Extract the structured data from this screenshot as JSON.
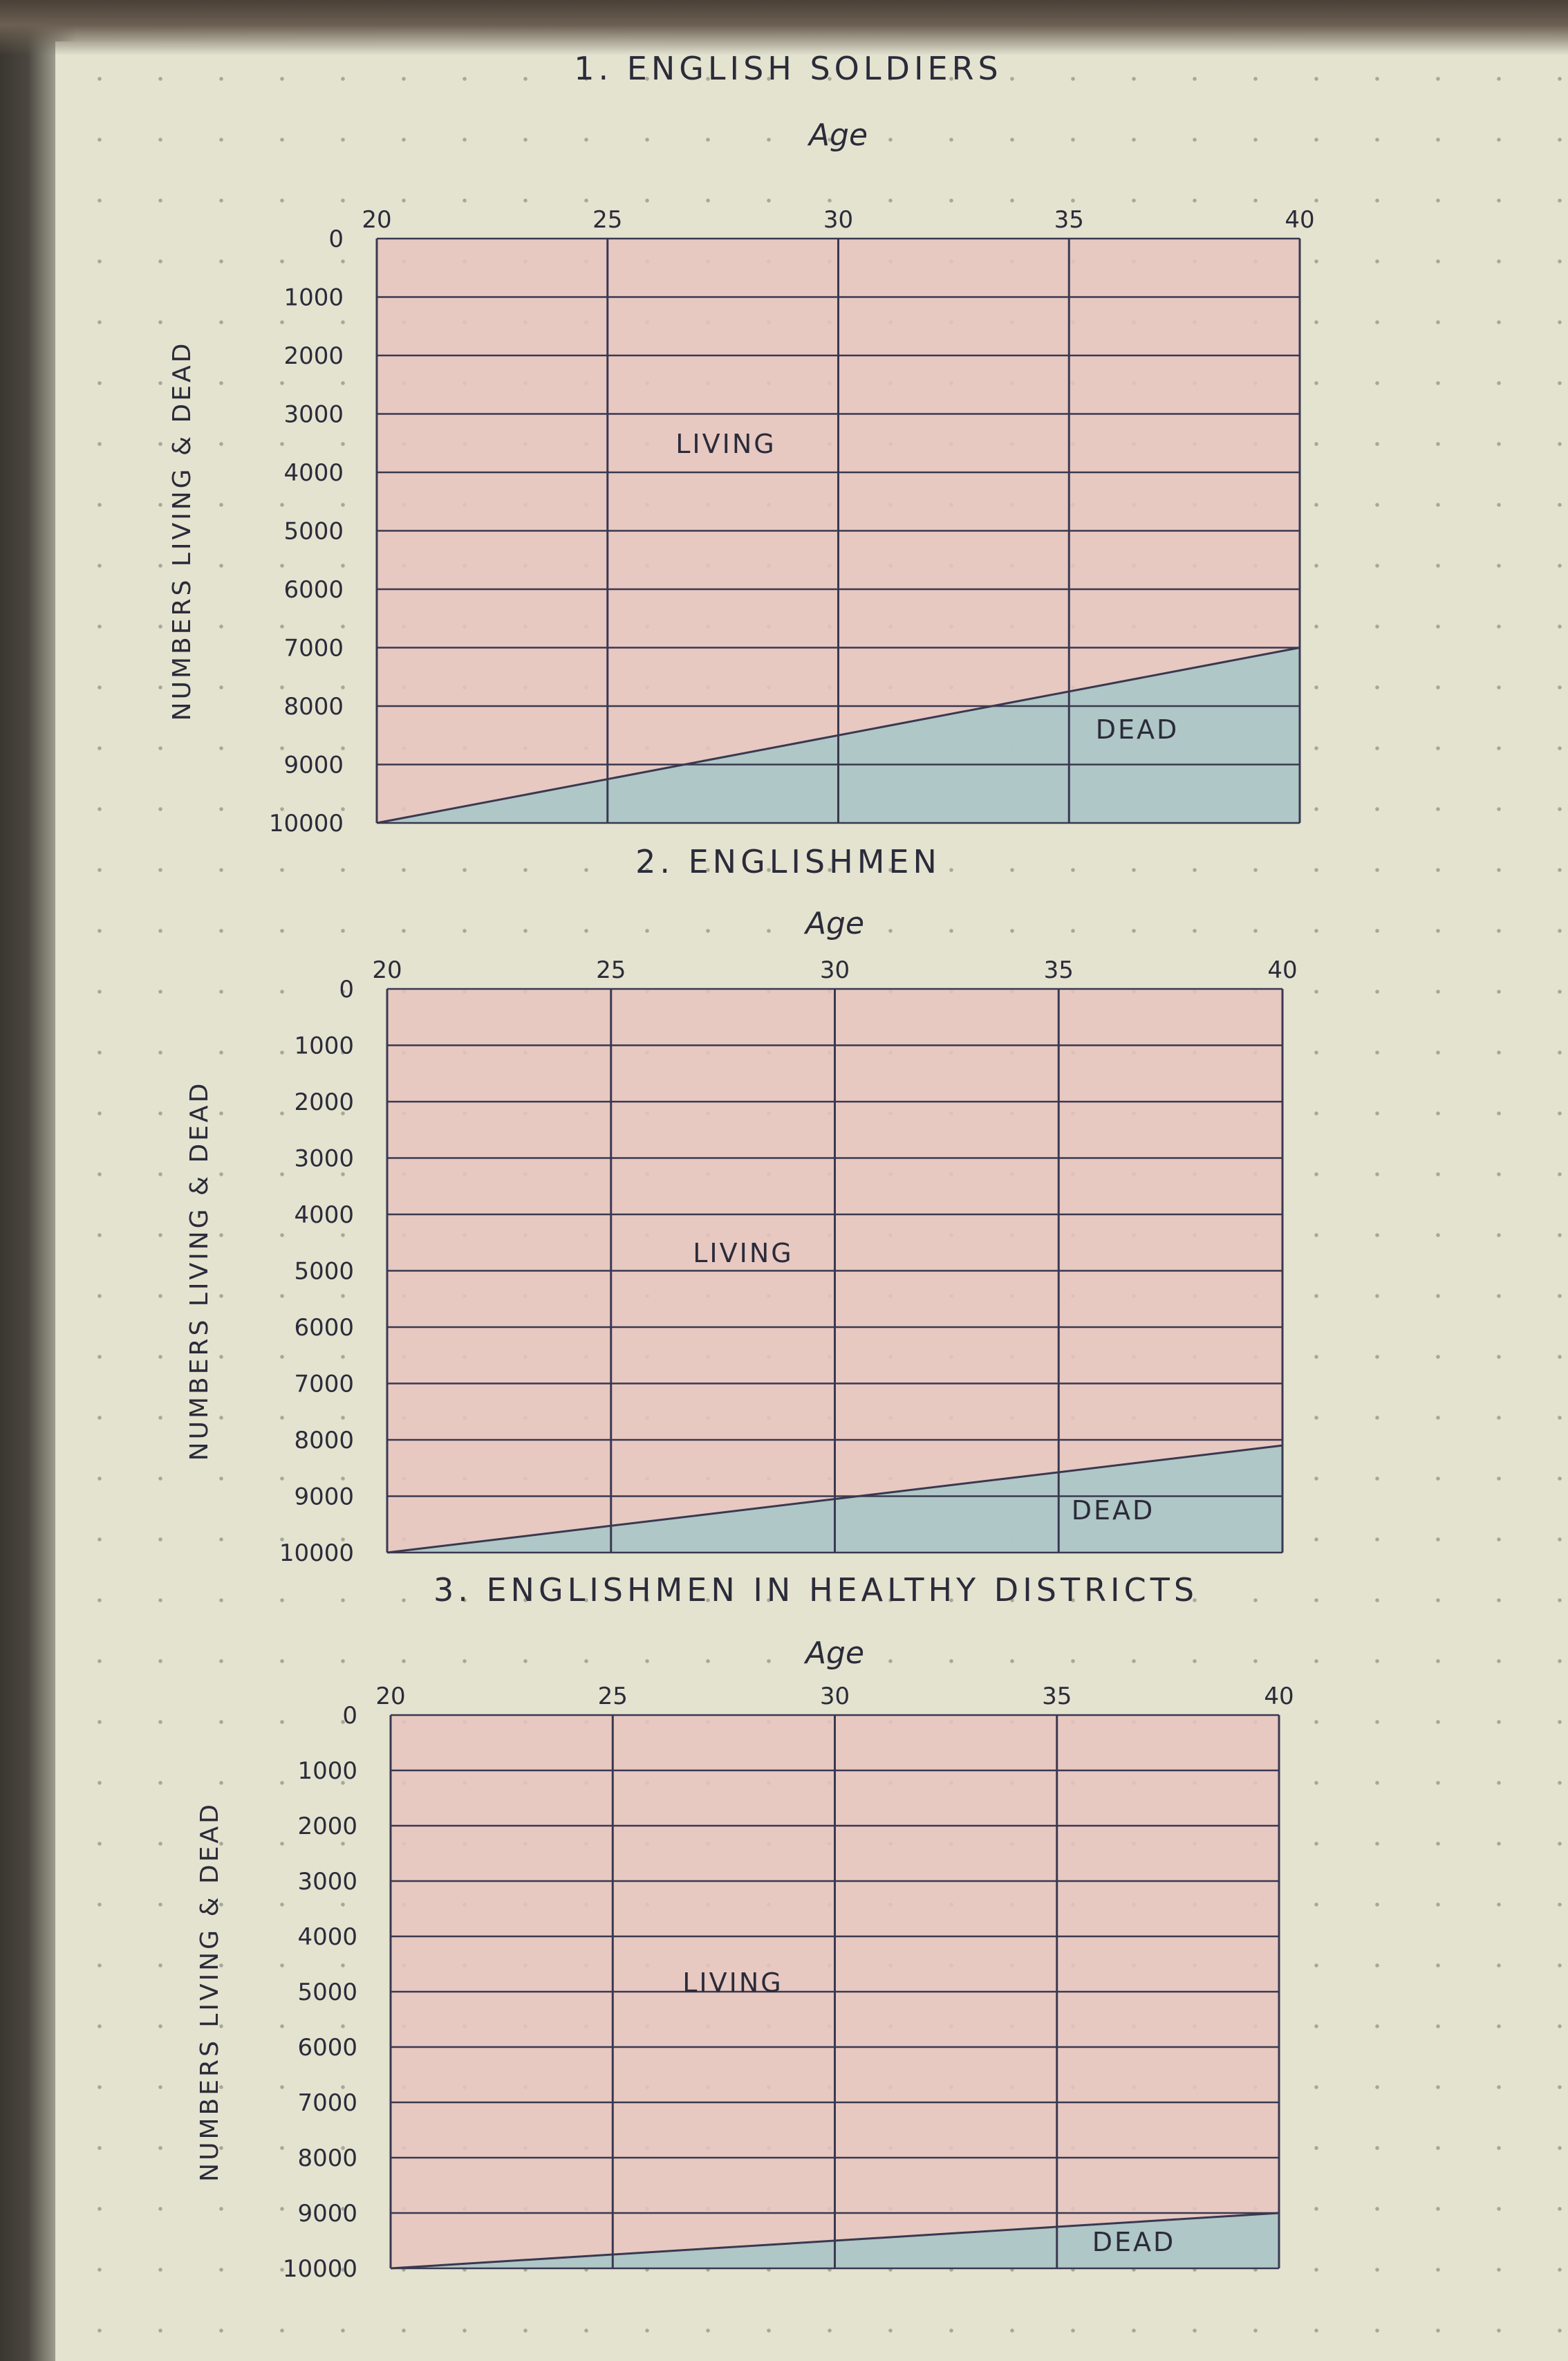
{
  "chart_data": [
    {
      "type": "area",
      "title": "1. ENGLISH SOLDIERS",
      "xlabel": "Age",
      "ylabel": "NUMBERS LIVING & DEAD",
      "x_ticks": [
        "20",
        "25",
        "30",
        "35",
        "40"
      ],
      "y_ticks": [
        "0",
        "1000",
        "2000",
        "3000",
        "4000",
        "5000",
        "6000",
        "7000",
        "8000",
        "9000",
        "10000"
      ],
      "xlim": [
        20,
        40
      ],
      "ylim": [
        0,
        10000
      ],
      "y_inverted": true,
      "areas": [
        {
          "label": "LIVING",
          "color": "#e8c4c0"
        },
        {
          "label": "DEAD",
          "color": "#a9c6c6"
        }
      ],
      "series": [
        {
          "x": [
            20,
            40
          ],
          "values": [
            10000,
            7000
          ]
        }
      ]
    },
    {
      "type": "area",
      "title": "2. ENGLISHMEN",
      "xlabel": "Age",
      "ylabel": "NUMBERS LIVING & DEAD",
      "x_ticks": [
        "20",
        "25",
        "30",
        "35",
        "40"
      ],
      "y_ticks": [
        "0",
        "1000",
        "2000",
        "3000",
        "4000",
        "5000",
        "6000",
        "7000",
        "8000",
        "9000",
        "10000"
      ],
      "xlim": [
        20,
        40
      ],
      "ylim": [
        0,
        10000
      ],
      "y_inverted": true,
      "areas": [
        {
          "label": "LIVING",
          "color": "#e8c4c0"
        },
        {
          "label": "DEAD",
          "color": "#a9c6c6"
        }
      ],
      "series": [
        {
          "x": [
            20,
            40
          ],
          "values": [
            10000,
            8100
          ]
        }
      ]
    },
    {
      "type": "area",
      "title": "3. ENGLISHMEN IN HEALTHY DISTRICTS",
      "xlabel": "Age",
      "ylabel": "NUMBERS LIVING & DEAD",
      "x_ticks": [
        "20",
        "25",
        "30",
        "35",
        "40"
      ],
      "y_ticks": [
        "0",
        "1000",
        "2000",
        "3000",
        "4000",
        "5000",
        "6000",
        "7000",
        "8000",
        "9000",
        "10000"
      ],
      "xlim": [
        20,
        40
      ],
      "ylim": [
        0,
        10000
      ],
      "y_inverted": true,
      "areas": [
        {
          "label": "LIVING",
          "color": "#e8c4c0"
        },
        {
          "label": "DEAD",
          "color": "#a9c6c6"
        }
      ],
      "series": [
        {
          "x": [
            20,
            40
          ],
          "values": [
            10000,
            9000
          ]
        }
      ]
    }
  ],
  "style": {
    "ink": "#2b2b3a",
    "grid": "#3a3850",
    "living": "#e8c4c0",
    "dead": "#a9c6c6"
  }
}
